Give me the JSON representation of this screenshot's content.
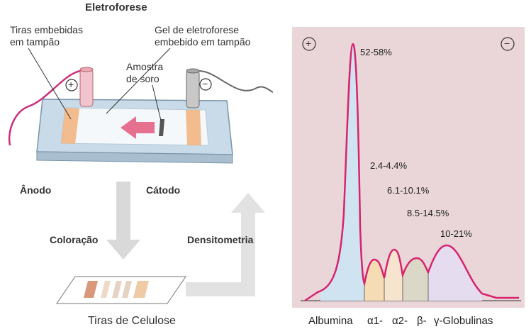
{
  "title": "Eletroforese",
  "apparatus": {
    "buffer_strips_label": [
      "Tiras embebidas",
      "em tampão"
    ],
    "gel_label": [
      "Gel de eletroforese",
      "embebido em tampão"
    ],
    "sample_label": [
      "Amostra",
      "de soro"
    ],
    "anode_label": "Ânodo",
    "cathode_label": "Cátodo",
    "plus_symbol": "+",
    "minus_symbol": "−"
  },
  "steps": {
    "staining": "Coloração",
    "densitometry": "Densitometria",
    "strips": "Tiras de Celulose"
  },
  "densitogram": {
    "plus_symbol": "+",
    "minus_symbol": "−",
    "fractions": [
      {
        "name": "Albumina",
        "percent": "52-58%",
        "color": "#cfe4f0"
      },
      {
        "name": "α1-",
        "percent": "2.4-4.4%",
        "color": "#f5dcb4"
      },
      {
        "name": "α2-",
        "percent": "6.1-10.1%",
        "color": "#f6e4cf"
      },
      {
        "name": "β-",
        "percent": "8.5-14.5%",
        "color": "#dcd8c8"
      },
      {
        "name": "γ-Globulinas",
        "percent": "10-21%",
        "color": "#e6dcef"
      }
    ]
  },
  "colors": {
    "panel": "#ead6d8",
    "curve": "#d6246e",
    "arrow": "#d9d9d9"
  }
}
